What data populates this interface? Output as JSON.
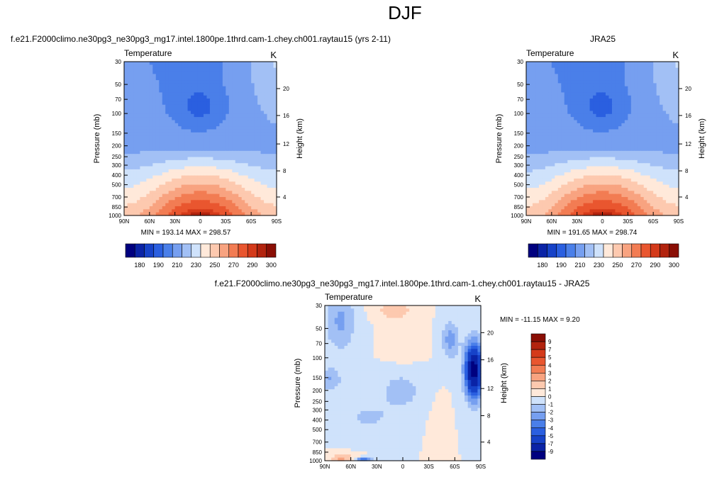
{
  "chart_data": {
    "title": "DJF",
    "panels": [
      {
        "id": "model",
        "type": "heatmap",
        "title": "f.e21.F2000climo.ne30pg3_ne30pg3_mg17.intel.1800pe.1thrd.cam-1.chey.ch001.raytau15 (yrs 2-11)",
        "left_title": "Temperature",
        "units": "K",
        "ylabel": "Pressure (mb)",
        "ylabel_right": "Height (km)",
        "xticks": [
          "90N",
          "60N",
          "30N",
          "0",
          "30S",
          "60S",
          "90S"
        ],
        "yticks": [
          "30",
          "50",
          "70",
          "100",
          "150",
          "200",
          "250",
          "300",
          "400",
          "500",
          "700",
          "850",
          "1000"
        ],
        "yticks_right": [
          "20",
          "16",
          "12",
          "8",
          "4"
        ],
        "stats": "MIN = 193.14   MAX = 298.57",
        "min": 193.14,
        "max": 298.57
      },
      {
        "id": "obs",
        "type": "heatmap",
        "title": "JRA25",
        "left_title": "Temperature",
        "units": "K",
        "ylabel": "Pressure (mb)",
        "ylabel_right": "Height (km)",
        "xticks": [
          "90N",
          "60N",
          "30N",
          "0",
          "30S",
          "60S",
          "90S"
        ],
        "yticks": [
          "30",
          "50",
          "70",
          "100",
          "150",
          "200",
          "250",
          "300",
          "400",
          "500",
          "700",
          "850",
          "1000"
        ],
        "yticks_right": [
          "20",
          "16",
          "12",
          "8",
          "4"
        ],
        "stats": "MIN = 191.65   MAX = 298.74",
        "min": 191.65,
        "max": 298.74
      },
      {
        "id": "diff",
        "type": "heatmap",
        "title": "f.e21.F2000climo.ne30pg3_ne30pg3_mg17.intel.1800pe.1thrd.cam-1.chey.ch001.raytau15 - JRA25",
        "left_title": "Temperature",
        "units": "K",
        "ylabel": "Pressure (mb)",
        "ylabel_right": "Height (km)",
        "xticks": [
          "90N",
          "60N",
          "30N",
          "0",
          "30S",
          "60S",
          "90S"
        ],
        "yticks": [
          "30",
          "50",
          "70",
          "100",
          "150",
          "200",
          "250",
          "300",
          "400",
          "500",
          "700",
          "850",
          "1000"
        ],
        "yticks_right": [
          "20",
          "16",
          "12",
          "8",
          "4"
        ],
        "stats": "MIN = -11.15  MAX =   9.20",
        "min": -11.15,
        "max": 9.2
      }
    ],
    "colorbar_abs": {
      "orientation": "horizontal",
      "colors": [
        "#00007f",
        "#0a23a6",
        "#1642c8",
        "#2a5fe0",
        "#4a7fe9",
        "#769ff0",
        "#a2c0f5",
        "#cfe2fb",
        "#ffe9da",
        "#fdc9af",
        "#f8a380",
        "#f27c53",
        "#e9562f",
        "#d43a1a",
        "#b2230e",
        "#8a0e05"
      ],
      "labels": [
        "180",
        "190",
        "210",
        "230",
        "250",
        "270",
        "290",
        "300"
      ]
    },
    "colorbar_diff": {
      "orientation": "vertical",
      "colors": [
        "#8a0e05",
        "#b2230e",
        "#d43a1a",
        "#e9562f",
        "#f27c53",
        "#f8a380",
        "#fdc9af",
        "#ffe9da",
        "#cfe2fb",
        "#a2c0f5",
        "#769ff0",
        "#4a7fe9",
        "#2a5fe0",
        "#1642c8",
        "#0a23a6",
        "#00007f"
      ],
      "labels": [
        "9",
        "7",
        "5",
        "4",
        "3",
        "2",
        "1",
        "0",
        "-1",
        "-2",
        "-3",
        "-4",
        "-5",
        "-7",
        "-9"
      ]
    }
  }
}
